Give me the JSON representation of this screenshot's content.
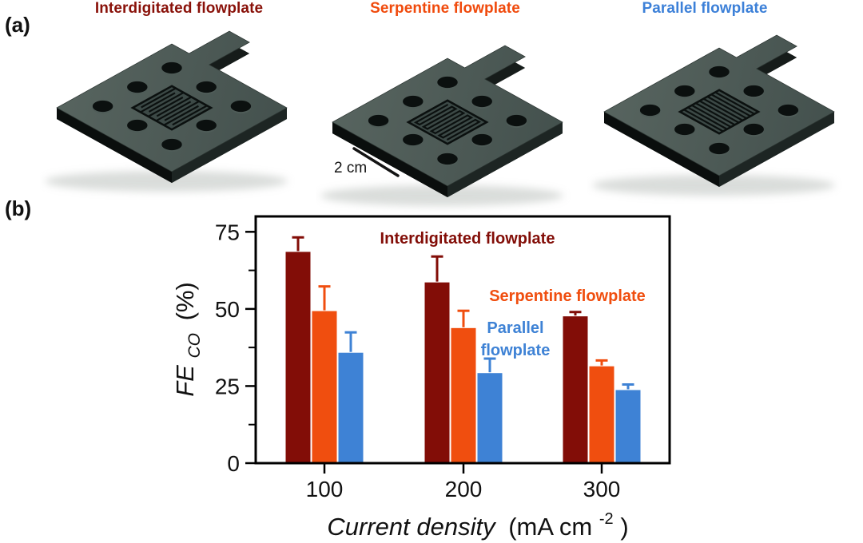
{
  "panel_a": {
    "label": "(a)",
    "plates": [
      {
        "name": "interdigitated",
        "title": "Interdigitated flowplate",
        "title_color": "#891109",
        "pattern": "interdigitated"
      },
      {
        "name": "serpentine",
        "title": "Serpentine flowplate",
        "title_color": "#F04A0C",
        "pattern": "serpentine"
      },
      {
        "name": "parallel",
        "title": "Parallel flowplate",
        "title_color": "#3C80D8",
        "pattern": "parallel"
      }
    ],
    "plate_color_top": "#4a5754",
    "scale_bar": {
      "label": "2 cm"
    }
  },
  "panel_b": {
    "label": "(b)"
  },
  "chart_data": {
    "type": "bar",
    "categories": [
      "100",
      "200",
      "300"
    ],
    "series": [
      {
        "name": "Interdigitated flowplate",
        "color": "#820D07",
        "values": [
          68.5,
          58.6,
          47.6
        ],
        "errors": [
          4.7,
          8.4,
          1.4
        ]
      },
      {
        "name": "Serpentine flowplate",
        "color": "#F04E0F",
        "values": [
          49.3,
          43.8,
          31.4
        ],
        "errors": [
          8.0,
          5.6,
          1.9
        ]
      },
      {
        "name": "Parallel flowplate",
        "color": "#3E82D5",
        "values": [
          35.8,
          29.2,
          23.7
        ],
        "errors": [
          6.6,
          4.7,
          1.8
        ]
      }
    ],
    "xlabel_italic": "Current density",
    "xlabel_unit_pre": "(mA cm",
    "xlabel_sup": "-2",
    "xlabel_unit_post": ")",
    "ylabel_italic": "FE",
    "ylabel_sub": "CO",
    "ylabel_rest": "(%)",
    "ylim": [
      0,
      80
    ],
    "yticks_major": [
      0,
      25,
      50,
      75
    ],
    "yticks_minor": [
      12.5,
      37.5,
      62.5
    ],
    "grid": false,
    "legend_position": "inside-top"
  }
}
